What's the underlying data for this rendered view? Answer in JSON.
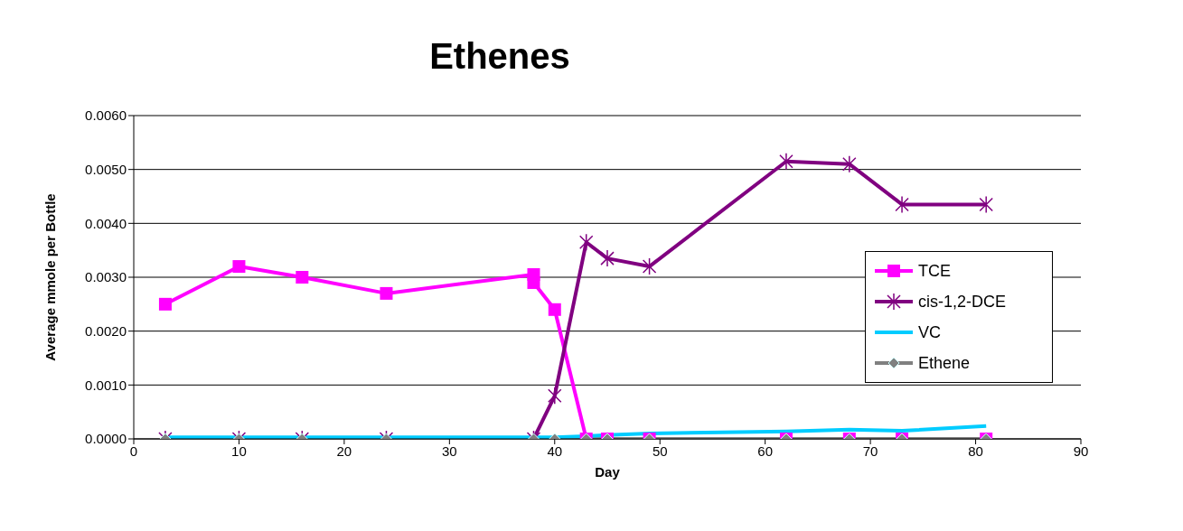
{
  "chart_data": {
    "type": "line",
    "title": "Ethenes",
    "xlabel": "Day",
    "ylabel": "Average mmole per Bottle",
    "xlim": [
      0,
      90
    ],
    "xticks": [
      0,
      10,
      20,
      30,
      40,
      50,
      60,
      70,
      80,
      90
    ],
    "ylim": [
      0,
      0.006
    ],
    "yticks": [
      {
        "value": 0,
        "label": "0.0000"
      },
      {
        "value": 0.001,
        "label": "0.0010"
      },
      {
        "value": 0.002,
        "label": "0.0020"
      },
      {
        "value": 0.003,
        "label": "0.0030"
      },
      {
        "value": 0.004,
        "label": "0.0040"
      },
      {
        "value": 0.005,
        "label": "0.0050"
      },
      {
        "value": 0.006,
        "label": "0.0060"
      }
    ],
    "grid": "y",
    "legend": "right",
    "line_style": "solid",
    "series": [
      {
        "name": "TCE",
        "color": "#ff00ff",
        "marker": "square",
        "x": [
          3,
          10,
          16,
          24,
          38,
          38,
          40,
          43,
          45,
          49,
          62,
          68,
          73,
          81
        ],
        "values": [
          0.0025,
          0.0032,
          0.003,
          0.0027,
          0.00305,
          0.0029,
          0.0024,
          0,
          0,
          0,
          0,
          0,
          0,
          0
        ]
      },
      {
        "name": "cis-1,2-DCE",
        "color": "#800080",
        "marker": "cross",
        "x": [
          3,
          10,
          16,
          24,
          38,
          40,
          43,
          45,
          49,
          62,
          68,
          73,
          81
        ],
        "values": [
          0,
          0,
          0,
          0,
          0,
          0.0008,
          0.00365,
          0.00335,
          0.0032,
          0.00515,
          0.0051,
          0.00435,
          0.00435
        ]
      },
      {
        "name": "VC",
        "color": "#00ccff",
        "marker": "none",
        "x": [
          3,
          10,
          16,
          24,
          38,
          40,
          43,
          45,
          49,
          62,
          68,
          73,
          81
        ],
        "values": [
          3e-05,
          3e-05,
          3e-05,
          3e-05,
          3e-05,
          3e-05,
          5e-05,
          7e-05,
          0.0001,
          0.00014,
          0.00017,
          0.00015,
          0.00024
        ]
      },
      {
        "name": "Ethene",
        "color": "#808080",
        "marker": "diamond",
        "x": [
          3,
          10,
          16,
          24,
          38,
          40,
          43,
          45,
          49,
          62,
          68,
          73,
          81
        ],
        "values": [
          0,
          0,
          0,
          0,
          0,
          0,
          0,
          0,
          0,
          0,
          0,
          0,
          0
        ]
      }
    ]
  }
}
